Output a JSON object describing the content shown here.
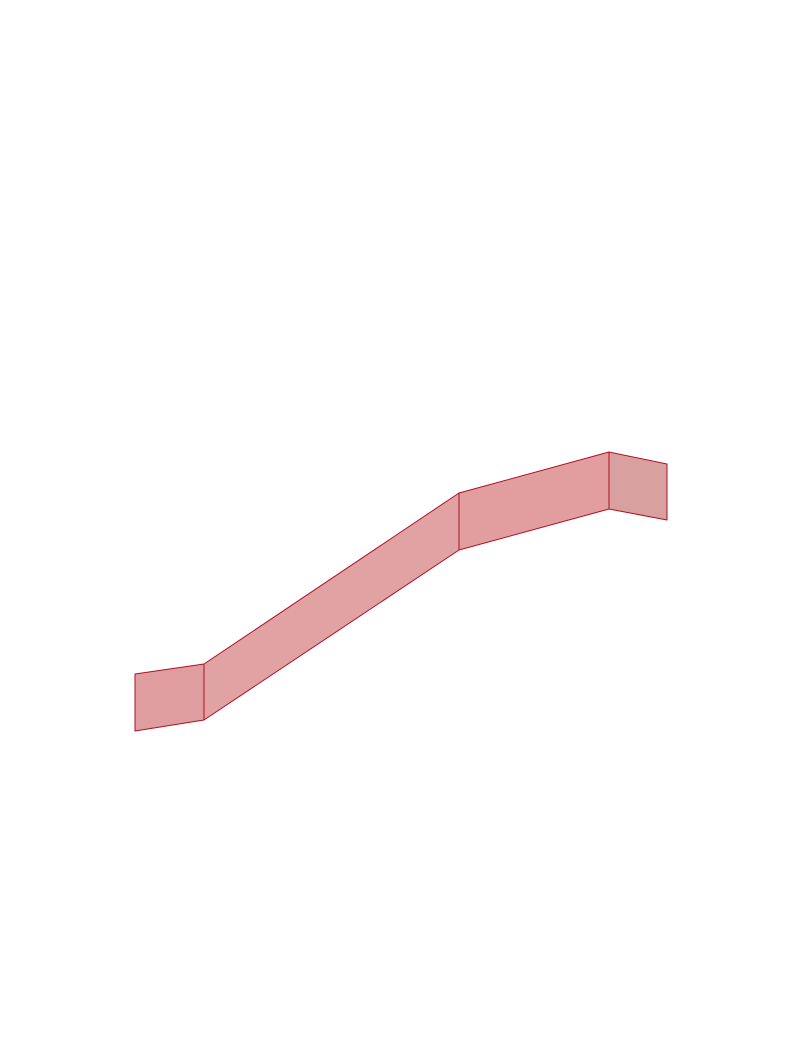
{
  "viewer": {
    "background_color": "#ffffff"
  },
  "model": {
    "panels": [
      {
        "id": "panel-1",
        "fill": "#e09da0"
      },
      {
        "id": "panel-2",
        "fill": "#e1a2a3"
      },
      {
        "id": "panel-3",
        "fill": "#e29d9f"
      },
      {
        "id": "panel-4",
        "fill": "#d9a0a0"
      }
    ],
    "edge_color": "#b01020"
  }
}
